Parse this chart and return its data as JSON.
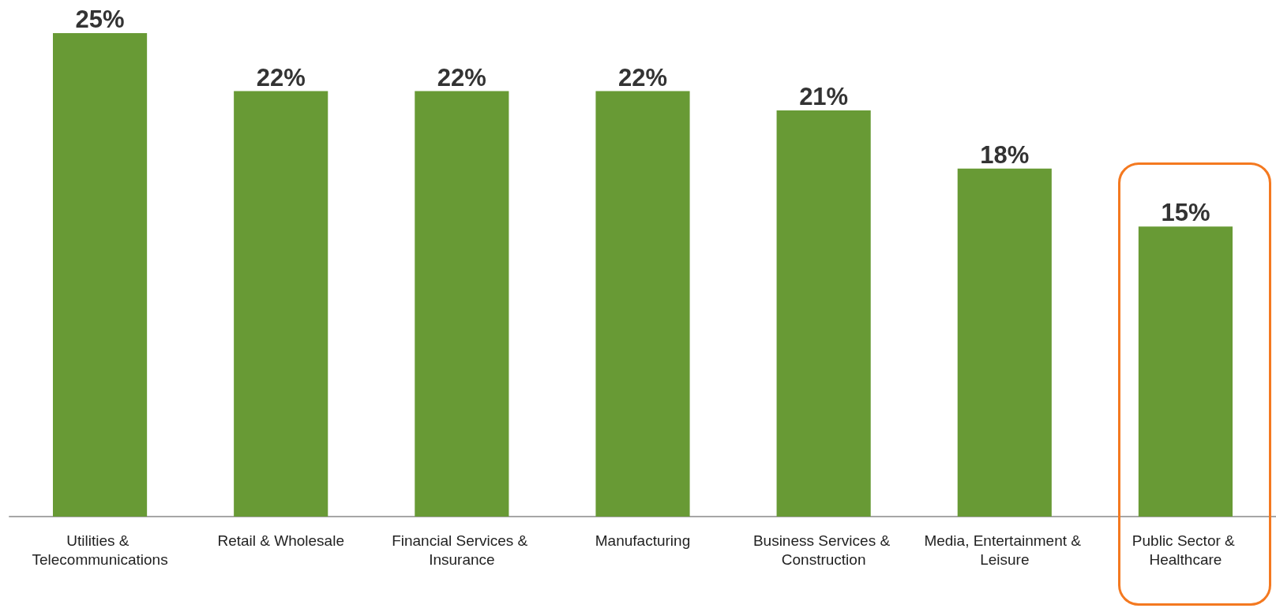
{
  "chart_data": {
    "type": "bar",
    "categories": [
      "Utilities & Telecommunications",
      "Retail & Wholesale",
      "Financial Services & Insurance",
      "Manufacturing",
      "Business Services & Construction",
      "Media, Entertainment & Leisure",
      "Public Sector & Healthcare"
    ],
    "values": [
      25,
      22,
      22,
      22,
      21,
      18,
      15
    ],
    "value_labels": [
      "25%",
      "22%",
      "22%",
      "22%",
      "21%",
      "18%",
      "15%"
    ],
    "color": "#689a35"
  }
}
